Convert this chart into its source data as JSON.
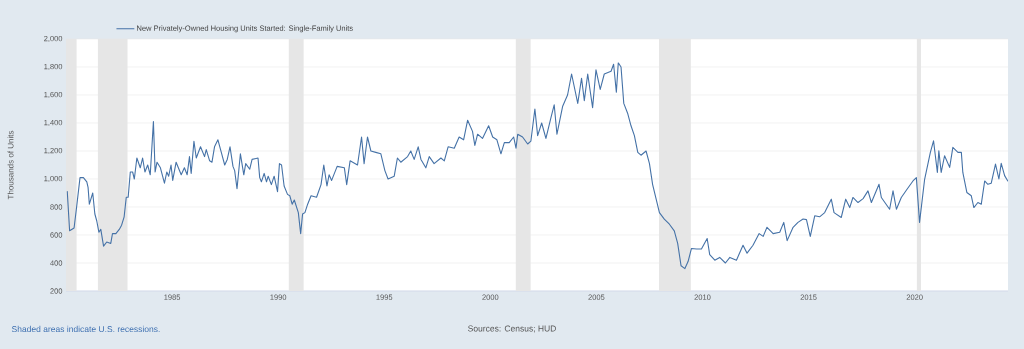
{
  "chart_data": {
    "type": "line",
    "ylabel": "Thousands of Units",
    "annotations": [
      "Shaded areas indicate U.S. recessions.",
      "Sources: Census; HUD"
    ],
    "xlim": [
      1980,
      2024.4
    ],
    "ylim": [
      200,
      2000
    ],
    "xticks": [
      1985,
      1990,
      1995,
      2000,
      2005,
      2010,
      2015,
      2020
    ],
    "yticks": [
      {
        "value": 200,
        "label": "200"
      },
      {
        "value": 400,
        "label": "400"
      },
      {
        "value": 600,
        "label": "600"
      },
      {
        "value": 800,
        "label": "800"
      },
      {
        "value": 1000,
        "label": "1,000"
      },
      {
        "value": 1200,
        "label": "1,200"
      },
      {
        "value": 1400,
        "label": "1,400"
      },
      {
        "value": 1600,
        "label": "1,600"
      },
      {
        "value": 1800,
        "label": "1,800"
      },
      {
        "value": 2000,
        "label": "2,000"
      }
    ],
    "grid": "y",
    "legend": "top left",
    "line_style": "solid",
    "bands": [
      {
        "axis": "x",
        "from": 1980.0,
        "to": 1980.5,
        "color": "#e6e6e6"
      },
      {
        "axis": "x",
        "from": 1981.5,
        "to": 1982.9,
        "color": "#e6e6e6"
      },
      {
        "axis": "x",
        "from": 1990.5,
        "to": 1991.2,
        "color": "#e6e6e6"
      },
      {
        "axis": "x",
        "from": 2001.2,
        "to": 2001.9,
        "color": "#e6e6e6"
      },
      {
        "axis": "x",
        "from": 2007.95,
        "to": 2009.45,
        "color": "#e6e6e6"
      },
      {
        "axis": "x",
        "from": 2020.1,
        "to": 2020.3,
        "color": "#e6e6e6"
      }
    ],
    "series": [
      {
        "name": "New Privately-Owned Housing Units Started: Single-Family Units",
        "color": "#4572a7",
        "x": [
          1980.06,
          1980.17,
          1980.38,
          1980.5,
          1980.66,
          1980.82,
          1980.98,
          1981.04,
          1981.1,
          1981.26,
          1981.36,
          1981.45,
          1981.55,
          1981.64,
          1981.77,
          1981.92,
          1982.11,
          1982.19,
          1982.35,
          1982.51,
          1982.62,
          1982.74,
          1982.84,
          1982.93,
          1983.03,
          1983.14,
          1983.22,
          1983.34,
          1983.5,
          1983.61,
          1983.72,
          1983.85,
          1983.97,
          1984.12,
          1984.2,
          1984.29,
          1984.45,
          1984.64,
          1984.75,
          1984.84,
          1984.95,
          1985.03,
          1985.19,
          1985.43,
          1985.58,
          1985.71,
          1985.82,
          1985.9,
          1986.03,
          1986.14,
          1986.34,
          1986.53,
          1986.61,
          1986.77,
          1986.88,
          1987.0,
          1987.16,
          1987.32,
          1987.48,
          1987.6,
          1987.73,
          1987.87,
          1987.95,
          1988.06,
          1988.22,
          1988.38,
          1988.47,
          1988.66,
          1988.77,
          1989.05,
          1989.13,
          1989.21,
          1989.34,
          1989.45,
          1989.53,
          1989.68,
          1989.81,
          1989.97,
          1990.06,
          1990.16,
          1990.28,
          1990.44,
          1990.55,
          1990.66,
          1990.76,
          1990.95,
          1991.06,
          1991.15,
          1991.26,
          1991.39,
          1991.55,
          1991.81,
          1992.02,
          1992.15,
          1992.3,
          1992.4,
          1992.52,
          1992.78,
          1993.12,
          1993.23,
          1993.39,
          1993.74,
          1993.93,
          1994.05,
          1994.21,
          1994.37,
          1994.6,
          1994.84,
          1995.03,
          1995.18,
          1995.47,
          1995.62,
          1995.78,
          1996.1,
          1996.25,
          1996.41,
          1996.6,
          1996.73,
          1996.96,
          1997.12,
          1997.35,
          1997.67,
          1997.83,
          1998.01,
          1998.3,
          1998.53,
          1998.74,
          1998.93,
          1999.16,
          1999.27,
          1999.4,
          1999.63,
          1999.92,
          2000.11,
          2000.31,
          2000.5,
          2000.66,
          2000.89,
          2001.1,
          2001.21,
          2001.29,
          2001.52,
          2001.76,
          2001.91,
          2002.1,
          2002.23,
          2002.42,
          2002.62,
          2002.86,
          2003.01,
          2003.14,
          2003.41,
          2003.64,
          2003.83,
          2004.12,
          2004.3,
          2004.43,
          2004.59,
          2004.82,
          2004.98,
          2005.18,
          2005.37,
          2005.69,
          2005.81,
          2005.94,
          2006.03,
          2006.16,
          2006.29,
          2006.47,
          2006.63,
          2006.79,
          2006.95,
          2007.1,
          2007.34,
          2007.5,
          2007.65,
          2007.97,
          2008.2,
          2008.44,
          2008.67,
          2008.83,
          2008.99,
          2009.17,
          2009.32,
          2009.48,
          2009.72,
          2009.95,
          2010.22,
          2010.34,
          2010.58,
          2010.81,
          2011.08,
          2011.29,
          2011.6,
          2011.91,
          2012.1,
          2012.38,
          2012.67,
          2012.86,
          2013.04,
          2013.33,
          2013.64,
          2013.83,
          2013.99,
          2014.27,
          2014.5,
          2014.74,
          2014.9,
          2015.08,
          2015.29,
          2015.52,
          2015.76,
          2016.07,
          2016.2,
          2016.54,
          2016.75,
          2016.94,
          2017.09,
          2017.33,
          2017.57,
          2017.8,
          2017.96,
          2018.32,
          2018.43,
          2018.82,
          2018.98,
          2019.14,
          2019.37,
          2019.64,
          2019.92,
          2020.08,
          2020.23,
          2020.47,
          2020.74,
          2020.89,
          2021.07,
          2021.14,
          2021.25,
          2021.41,
          2021.65,
          2021.8,
          2022.04,
          2022.2,
          2022.27,
          2022.46,
          2022.67,
          2022.79,
          2022.98,
          2023.14,
          2023.3,
          2023.45,
          2023.61,
          2023.81,
          2023.97,
          2024.08,
          2024.24,
          2024.39
        ],
        "values": [
          910,
          630,
          650,
          800,
          1010,
          1010,
          980,
          940,
          820,
          900,
          750,
          700,
          620,
          640,
          520,
          550,
          540,
          610,
          610,
          640,
          670,
          730,
          870,
          870,
          1050,
          1050,
          1000,
          1150,
          1080,
          1150,
          1050,
          1100,
          1030,
          1410,
          1050,
          1120,
          1080,
          970,
          1050,
          1020,
          1100,
          990,
          1120,
          1030,
          1080,
          1030,
          1160,
          1040,
          1270,
          1150,
          1230,
          1160,
          1210,
          1130,
          1120,
          1230,
          1280,
          1190,
          1100,
          1140,
          1230,
          1090,
          1060,
          930,
          1180,
          1030,
          1110,
          1070,
          1140,
          1150,
          1010,
          980,
          1040,
          980,
          1020,
          960,
          1020,
          910,
          1110,
          1100,
          950,
          890,
          880,
          820,
          850,
          760,
          610,
          750,
          760,
          820,
          880,
          870,
          960,
          1100,
          950,
          1030,
          990,
          1090,
          1080,
          960,
          1130,
          1100,
          1300,
          1110,
          1300,
          1200,
          1190,
          1180,
          1060,
          1000,
          1020,
          1150,
          1120,
          1160,
          1200,
          1140,
          1230,
          1140,
          1080,
          1160,
          1110,
          1150,
          1130,
          1230,
          1220,
          1300,
          1280,
          1420,
          1340,
          1240,
          1320,
          1290,
          1380,
          1300,
          1280,
          1180,
          1260,
          1260,
          1300,
          1220,
          1320,
          1300,
          1250,
          1270,
          1500,
          1310,
          1400,
          1290,
          1440,
          1530,
          1320,
          1520,
          1600,
          1750,
          1540,
          1720,
          1560,
          1750,
          1510,
          1780,
          1640,
          1750,
          1770,
          1820,
          1620,
          1830,
          1800,
          1540,
          1470,
          1380,
          1310,
          1190,
          1170,
          1200,
          1110,
          960,
          760,
          713,
          677,
          630,
          540,
          380,
          360,
          410,
          504,
          500,
          500,
          575,
          460,
          420,
          440,
          400,
          440,
          420,
          527,
          470,
          527,
          610,
          590,
          655,
          610,
          620,
          690,
          560,
          655,
          690,
          714,
          710,
          590,
          737,
          730,
          760,
          856,
          760,
          725,
          856,
          796,
          868,
          832,
          860,
          915,
          832,
          962,
          868,
          784,
          915,
          784,
          868,
          927,
          986,
          1010,
          690,
          998,
          1190,
          1273,
          1047,
          1202,
          1047,
          1166,
          1083,
          1226,
          1190,
          1190,
          1047,
          904,
          880,
          796,
          832,
          820,
          986,
          962,
          970,
          1107,
          1000,
          1112,
          1024,
          986
        ]
      }
    ]
  }
}
